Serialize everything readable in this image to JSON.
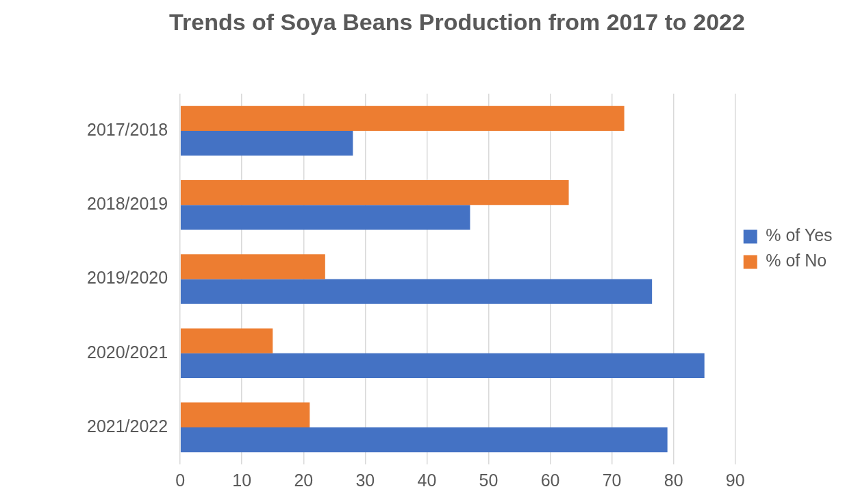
{
  "chart_data": {
    "type": "bar",
    "orientation": "horizontal",
    "title": "Trends of Soya Beans Production from 2017 to 2022",
    "categories": [
      "2017/2018",
      "2018/2019",
      "2019/2020",
      "2020/2021",
      "2021/2022"
    ],
    "series": [
      {
        "name": "% of Yes",
        "color": "#4472c4",
        "values": [
          28,
          47,
          76.5,
          85,
          79
        ]
      },
      {
        "name": "% of No",
        "color": "#ed7d31",
        "values": [
          72,
          63,
          23.5,
          15,
          21
        ]
      }
    ],
    "xlim": [
      0,
      90
    ],
    "xticks": [
      0,
      10,
      20,
      30,
      40,
      50,
      60,
      70,
      80,
      90
    ],
    "grid": "x",
    "legend": "right"
  }
}
